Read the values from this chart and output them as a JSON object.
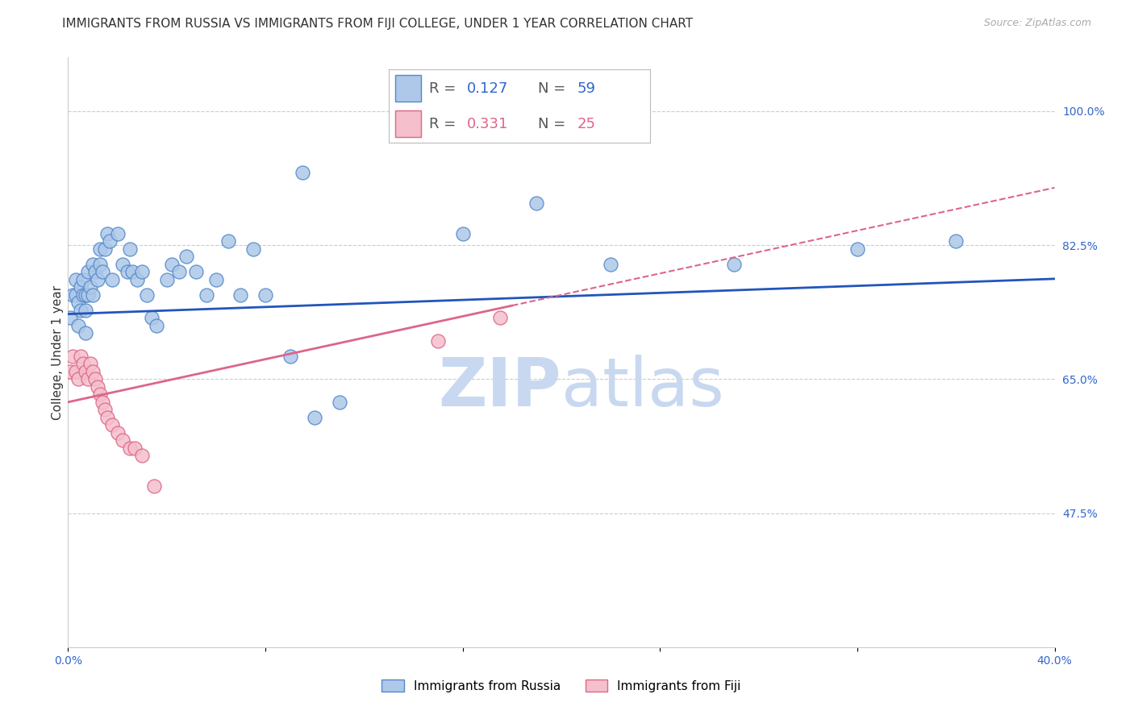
{
  "title": "IMMIGRANTS FROM RUSSIA VS IMMIGRANTS FROM FIJI COLLEGE, UNDER 1 YEAR CORRELATION CHART",
  "source": "Source: ZipAtlas.com",
  "ylabel": "College, Under 1 year",
  "x_min": 0.0,
  "x_max": 0.4,
  "y_min": 0.3,
  "y_max": 1.07,
  "x_ticks": [
    0.0,
    0.08,
    0.16,
    0.24,
    0.32,
    0.4
  ],
  "x_tick_labels": [
    "0.0%",
    "",
    "",
    "",
    "",
    "40.0%"
  ],
  "y_ticks_right": [
    0.475,
    0.65,
    0.825,
    1.0
  ],
  "y_tick_labels_right": [
    "47.5%",
    "65.0%",
    "82.5%",
    "100.0%"
  ],
  "russia_color": "#adc8e8",
  "russia_edge_color": "#5588cc",
  "fiji_color": "#f5bfcc",
  "fiji_edge_color": "#dd6688",
  "russia_line_color": "#2255bb",
  "fiji_line_color": "#dd6688",
  "R_russia": 0.127,
  "N_russia": 59,
  "R_fiji": 0.331,
  "N_fiji": 25,
  "russia_points_x": [
    0.001,
    0.002,
    0.003,
    0.003,
    0.004,
    0.004,
    0.005,
    0.005,
    0.006,
    0.006,
    0.007,
    0.007,
    0.007,
    0.008,
    0.008,
    0.009,
    0.01,
    0.01,
    0.011,
    0.012,
    0.013,
    0.013,
    0.014,
    0.015,
    0.016,
    0.017,
    0.018,
    0.02,
    0.022,
    0.024,
    0.025,
    0.026,
    0.028,
    0.03,
    0.032,
    0.034,
    0.036,
    0.04,
    0.042,
    0.045,
    0.048,
    0.052,
    0.056,
    0.06,
    0.065,
    0.07,
    0.075,
    0.08,
    0.09,
    0.095,
    0.1,
    0.11,
    0.14,
    0.16,
    0.19,
    0.22,
    0.27,
    0.32,
    0.36
  ],
  "russia_points_y": [
    0.73,
    0.76,
    0.78,
    0.76,
    0.75,
    0.72,
    0.77,
    0.74,
    0.76,
    0.78,
    0.76,
    0.74,
    0.71,
    0.79,
    0.76,
    0.77,
    0.8,
    0.76,
    0.79,
    0.78,
    0.82,
    0.8,
    0.79,
    0.82,
    0.84,
    0.83,
    0.78,
    0.84,
    0.8,
    0.79,
    0.82,
    0.79,
    0.78,
    0.79,
    0.76,
    0.73,
    0.72,
    0.78,
    0.8,
    0.79,
    0.81,
    0.79,
    0.76,
    0.78,
    0.83,
    0.76,
    0.82,
    0.76,
    0.68,
    0.92,
    0.6,
    0.62,
    0.97,
    0.84,
    0.88,
    0.8,
    0.8,
    0.82,
    0.83
  ],
  "fiji_points_x": [
    0.001,
    0.002,
    0.003,
    0.004,
    0.005,
    0.006,
    0.007,
    0.008,
    0.009,
    0.01,
    0.011,
    0.012,
    0.013,
    0.014,
    0.015,
    0.016,
    0.018,
    0.02,
    0.022,
    0.025,
    0.027,
    0.03,
    0.035,
    0.15,
    0.175
  ],
  "fiji_points_y": [
    0.66,
    0.68,
    0.66,
    0.65,
    0.68,
    0.67,
    0.66,
    0.65,
    0.67,
    0.66,
    0.65,
    0.64,
    0.63,
    0.62,
    0.61,
    0.6,
    0.59,
    0.58,
    0.57,
    0.56,
    0.56,
    0.55,
    0.51,
    0.7,
    0.73
  ],
  "watermark_zip": "ZIP",
  "watermark_atlas": "atlas",
  "watermark_color": "#c8d8f0",
  "background_color": "#ffffff",
  "grid_color": "#cccccc",
  "title_fontsize": 11,
  "axis_label_fontsize": 11,
  "tick_fontsize": 10,
  "legend_fontsize": 13,
  "watermark_fontsize": 60
}
